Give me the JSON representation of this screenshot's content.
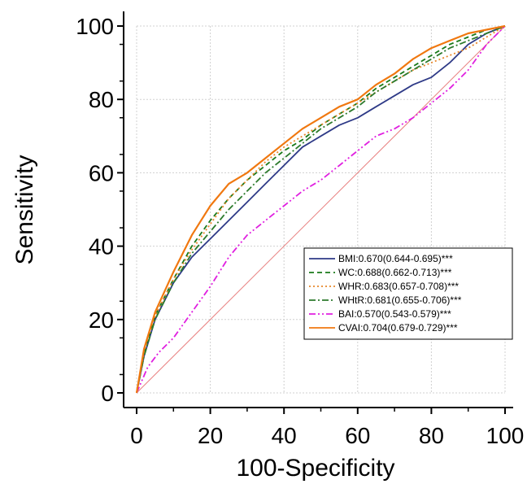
{
  "chart_data": {
    "type": "line",
    "title": "",
    "xlabel": "100-Specificity",
    "ylabel": "Sensitivity",
    "xlim": [
      0,
      100
    ],
    "ylim": [
      0,
      100
    ],
    "x_ticks": [
      "0",
      "20",
      "40",
      "60",
      "80",
      "100"
    ],
    "y_ticks": [
      "0",
      "20",
      "40",
      "60",
      "80",
      "100"
    ],
    "grid": true,
    "legend_position": "bottom-right",
    "reference_line": {
      "from": [
        0,
        0
      ],
      "to": [
        100,
        100
      ],
      "color": "#e88080"
    },
    "series": [
      {
        "name": "BMI:0.670(0.644-0.695)***",
        "color": "#2e3a87",
        "dash": "solid",
        "x": [
          0,
          2,
          5,
          10,
          15,
          20,
          25,
          30,
          35,
          40,
          45,
          50,
          55,
          60,
          65,
          70,
          75,
          80,
          85,
          90,
          95,
          100
        ],
        "y": [
          0,
          10,
          20,
          30,
          37,
          42,
          47,
          52,
          57,
          62,
          67,
          70,
          73,
          75,
          78,
          81,
          84,
          86,
          90,
          95,
          98,
          100
        ]
      },
      {
        "name": "WC:0.688(0.662-0.713)***",
        "color": "#1a7a1a",
        "dash": "dashed",
        "x": [
          0,
          2,
          5,
          10,
          15,
          20,
          25,
          30,
          35,
          40,
          45,
          50,
          55,
          60,
          65,
          70,
          75,
          80,
          85,
          90,
          95,
          100
        ],
        "y": [
          0,
          11,
          21,
          31,
          40,
          47,
          53,
          58,
          62,
          66,
          69,
          73,
          76,
          79,
          83,
          86,
          89,
          92,
          95,
          97,
          99,
          100
        ]
      },
      {
        "name": "WHR:0.683(0.657-0.708)***",
        "color": "#e8872a",
        "dash": "dotted",
        "x": [
          0,
          2,
          5,
          10,
          15,
          20,
          25,
          30,
          35,
          40,
          45,
          50,
          55,
          60,
          65,
          70,
          75,
          80,
          85,
          90,
          95,
          100
        ],
        "y": [
          0,
          11,
          21,
          31,
          39,
          46,
          53,
          58,
          63,
          67,
          70,
          73,
          76,
          79,
          82,
          85,
          88,
          90,
          92,
          94,
          97,
          100
        ]
      },
      {
        "name": "WHtR:0.681(0.655-0.706)***",
        "color": "#2c7a2c",
        "dash": "dashdot",
        "x": [
          0,
          2,
          5,
          10,
          15,
          20,
          25,
          30,
          35,
          40,
          45,
          50,
          55,
          60,
          65,
          70,
          75,
          80,
          85,
          90,
          95,
          100
        ],
        "y": [
          0,
          10,
          20,
          30,
          38,
          44,
          50,
          55,
          60,
          64,
          68,
          72,
          75,
          78,
          82,
          85,
          88,
          91,
          94,
          96,
          98,
          100
        ]
      },
      {
        "name": "BAI:0.570(0.543-0.579)***",
        "color": "#e020e0",
        "dash": "dashdotdot",
        "x": [
          0,
          3,
          6,
          10,
          15,
          20,
          25,
          30,
          35,
          40,
          45,
          50,
          55,
          60,
          65,
          70,
          75,
          80,
          85,
          90,
          95,
          100
        ],
        "y": [
          0,
          7,
          11,
          15,
          22,
          29,
          37,
          43,
          47,
          51,
          55,
          58,
          62,
          66,
          70,
          72,
          75,
          79,
          83,
          88,
          95,
          100
        ]
      },
      {
        "name": "CVAI:0.704(0.679-0.729)***",
        "color": "#f07810",
        "dash": "solid",
        "x": [
          0,
          2,
          5,
          10,
          15,
          20,
          25,
          30,
          35,
          40,
          45,
          50,
          55,
          60,
          65,
          70,
          75,
          80,
          85,
          90,
          95,
          100
        ],
        "y": [
          0,
          12,
          22,
          33,
          43,
          51,
          57,
          60,
          64,
          68,
          72,
          75,
          78,
          80,
          84,
          87,
          91,
          94,
          96,
          98,
          99,
          100
        ]
      }
    ]
  }
}
